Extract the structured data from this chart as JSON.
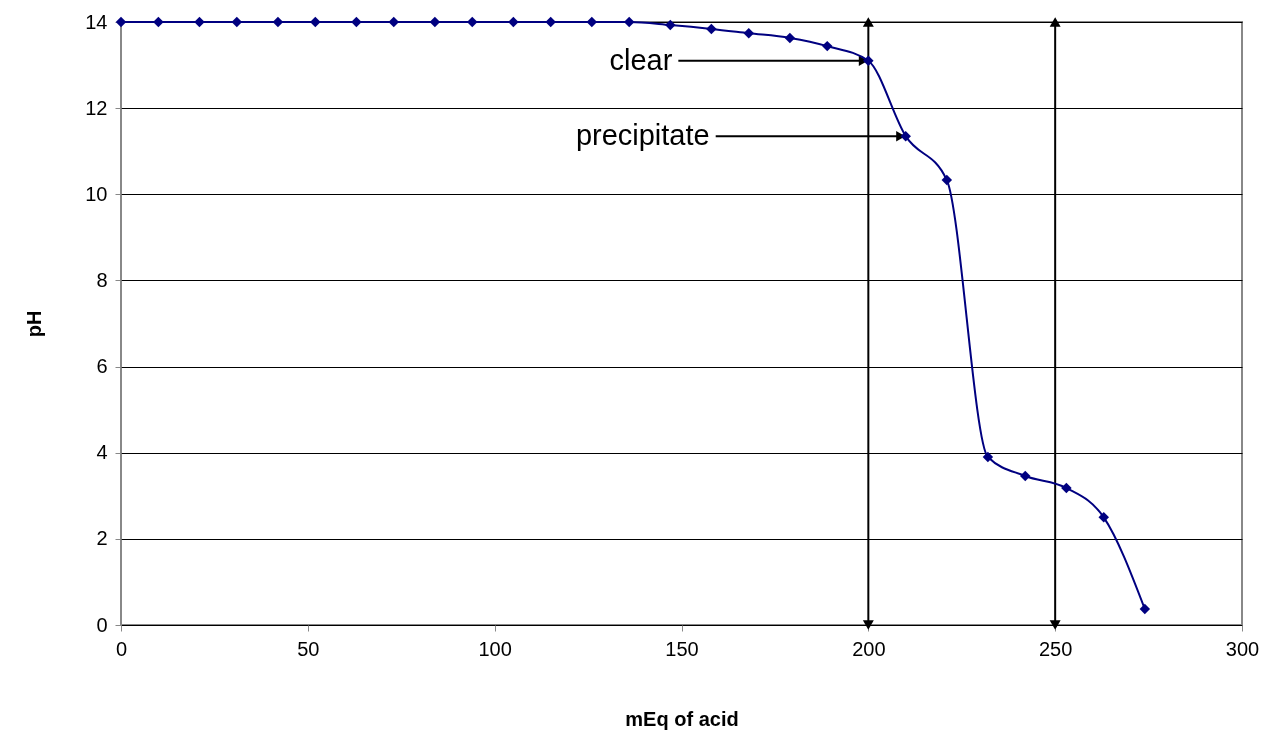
{
  "chart_data": {
    "type": "line",
    "xlabel": "mEq of acid",
    "ylabel": "pH",
    "x": [
      0,
      10,
      21,
      31,
      42,
      52,
      63,
      73,
      84,
      94,
      105,
      115,
      126,
      136,
      147,
      158,
      168,
      179,
      189,
      200,
      210,
      221,
      232,
      242,
      253,
      263,
      274
    ],
    "series": [
      {
        "color": "#000080",
        "values": [
          14,
          14,
          14,
          14,
          14,
          14,
          14,
          14,
          14,
          14,
          14,
          14,
          14,
          14,
          13.93,
          13.84,
          13.74,
          13.63,
          13.44,
          13.1,
          11.35,
          10.33,
          3.9,
          3.46,
          3.18,
          2.5,
          0.37
        ]
      }
    ],
    "xlim": [
      0,
      300
    ],
    "xticks": [
      0,
      50,
      100,
      150,
      200,
      250,
      300
    ],
    "ylim": [
      0,
      14
    ],
    "yticks": [
      0,
      2,
      4,
      6,
      8,
      10,
      12,
      14
    ],
    "grid": "y",
    "marker": "diamond",
    "line_style": "solid",
    "annotations": [
      {
        "text": "clear",
        "x": 200,
        "y": 13.1
      },
      {
        "text": "precipitate",
        "x": 210,
        "y": 11.35
      }
    ],
    "ref_lines": [
      {
        "axis": "x",
        "value": 200,
        "color": "#000000"
      },
      {
        "axis": "x",
        "value": 250,
        "color": "#000000"
      }
    ]
  }
}
